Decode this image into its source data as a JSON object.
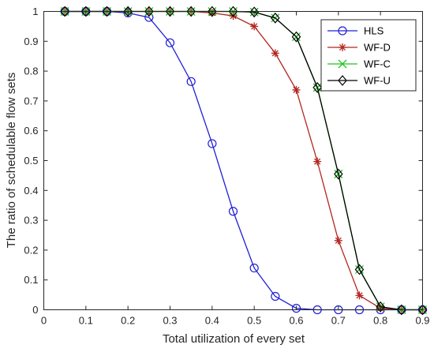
{
  "chart_data": {
    "type": "line",
    "xlabel": "Total utilization of every set",
    "ylabel": "The ratio of schedulable flow sets",
    "xlim": [
      0,
      0.9
    ],
    "ylim": [
      0,
      1
    ],
    "xticks": [
      "0",
      "0.1",
      "0.2",
      "0.3",
      "0.4",
      "0.5",
      "0.6",
      "0.7",
      "0.8",
      "0.9"
    ],
    "yticks": [
      "0",
      "0.1",
      "0.2",
      "0.3",
      "0.4",
      "0.5",
      "0.6",
      "0.7",
      "0.8",
      "0.9",
      "1"
    ],
    "grid": false,
    "legend_position": "top-right",
    "x": [
      0.05,
      0.1,
      0.15,
      0.2,
      0.25,
      0.3,
      0.35,
      0.4,
      0.45,
      0.5,
      0.55,
      0.6,
      0.65,
      0.7,
      0.75,
      0.8,
      0.85,
      0.9
    ],
    "series": [
      {
        "name": "HLS",
        "color": "#1f1fd6",
        "marker": "circle",
        "values": [
          1.0,
          1.0,
          1.0,
          0.995,
          0.98,
          0.895,
          0.765,
          0.557,
          0.33,
          0.14,
          0.045,
          0.005,
          0.0,
          0.0,
          0.0,
          0.0,
          0.0,
          0.0
        ]
      },
      {
        "name": "WF-D",
        "color": "#b3261e",
        "marker": "asterisk",
        "values": [
          1.0,
          1.0,
          1.0,
          1.0,
          1.0,
          1.0,
          1.0,
          0.995,
          0.985,
          0.95,
          0.86,
          0.737,
          0.497,
          0.232,
          0.048,
          0.005,
          0.0,
          0.0
        ]
      },
      {
        "name": "WF-C",
        "color": "#22c322",
        "marker": "x",
        "values": [
          1.0,
          1.0,
          1.0,
          1.0,
          1.0,
          1.0,
          1.0,
          1.0,
          1.0,
          0.998,
          0.978,
          0.915,
          0.745,
          0.455,
          0.135,
          0.01,
          0.0,
          0.0
        ]
      },
      {
        "name": "WF-U",
        "color": "#000000",
        "marker": "diamond",
        "values": [
          1.0,
          1.0,
          1.0,
          1.0,
          1.0,
          1.0,
          1.0,
          1.0,
          1.0,
          0.998,
          0.978,
          0.915,
          0.745,
          0.455,
          0.135,
          0.01,
          0.0,
          0.0
        ]
      }
    ]
  }
}
